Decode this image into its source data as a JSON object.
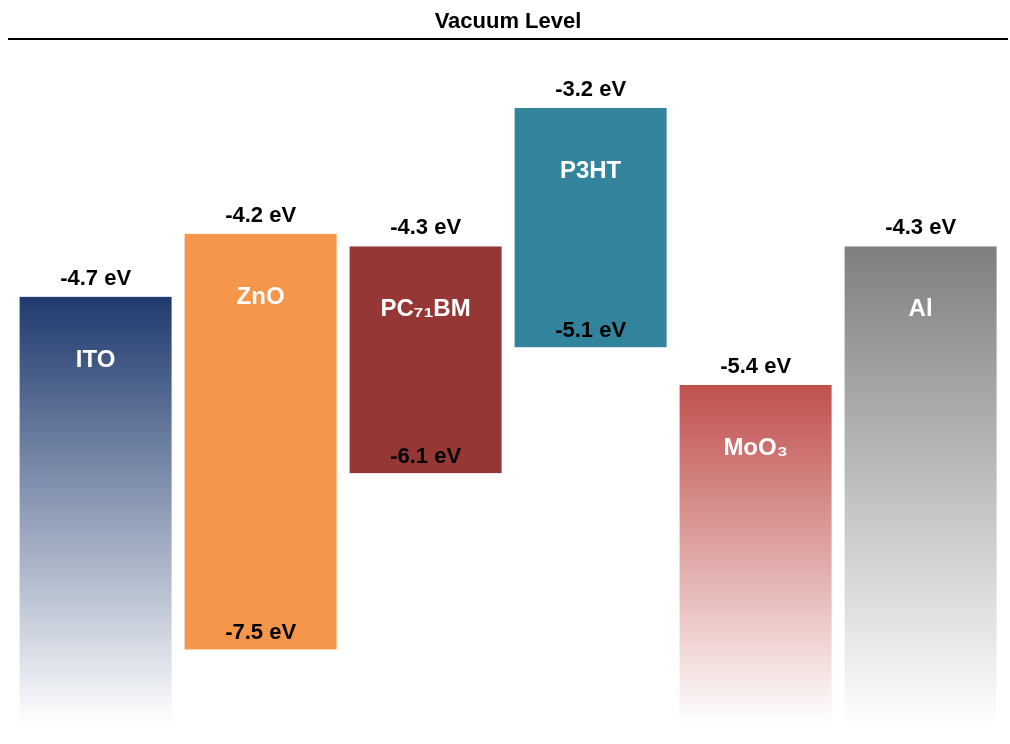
{
  "chart_data": {
    "type": "other",
    "title": "Vacuum Level",
    "categories": [
      "ITO",
      "ZnO",
      "PC₇₁BM",
      "P3HT",
      "MoO₃",
      "Al"
    ],
    "series": [
      {
        "colors": [
          "#1f3a6e",
          "#f5964a",
          "#953735",
          "#31849b",
          "#c0504d",
          "#7f7f7f"
        ],
        "values": [
          -4.7,
          -4.2,
          -4.3,
          -3.2,
          -5.4,
          -4.3
        ],
        "value_labels": [
          "-4.7 eV",
          "-4.2 eV",
          "-4.3 eV",
          "-3.2 eV",
          "-5.4 eV",
          "-4.3 eV"
        ]
      },
      {
        "colors": [
          null,
          "#f5964a",
          "#953735",
          "#31849b",
          null,
          null
        ],
        "values": [
          null,
          -7.5,
          -6.1,
          -5.1,
          null,
          null
        ],
        "value_labels": [
          null,
          "-7.5 eV",
          "-6.1 eV",
          "-5.1 eV",
          null,
          null
        ]
      }
    ]
  }
}
